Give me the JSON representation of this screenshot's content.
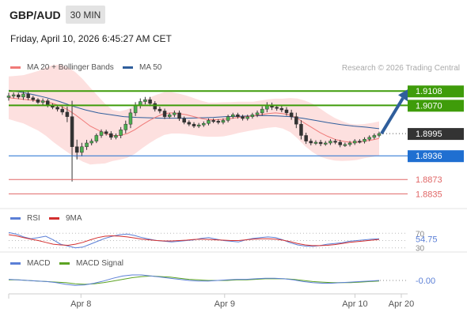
{
  "header": {
    "symbol": "GBP/AUD",
    "timeframe": "30 MIN",
    "timestamp": "Friday, April 10, 2026 6:45:27 AM CET",
    "copyright": "Research © 2026 Trading Central"
  },
  "legends": {
    "main": [
      {
        "label": "MA 20 + Bollinger Bands",
        "color": "#f07a78"
      },
      {
        "label": "MA 50",
        "color": "#2f5e9c"
      }
    ],
    "rsi": [
      {
        "label": "RSI",
        "color": "#5b7fd6"
      },
      {
        "label": "9MA",
        "color": "#d32f2f"
      }
    ],
    "macd": [
      {
        "label": "MACD",
        "color": "#5b7fd6"
      },
      {
        "label": "MACD Signal",
        "color": "#5ca323"
      }
    ]
  },
  "chart_data": {
    "type": "candlestick",
    "price_range": [
      1.88,
      1.914
    ],
    "levels": [
      {
        "value": 1.9108,
        "label": "1.9108",
        "style": "resistance",
        "color": "#3f9c0a"
      },
      {
        "value": 1.907,
        "label": "1.9070",
        "style": "resistance",
        "color": "#3f9c0a"
      },
      {
        "value": 1.8995,
        "label": "1.8995",
        "style": "current",
        "color": "#333333"
      },
      {
        "value": 1.8936,
        "label": "1.8936",
        "style": "pivot",
        "color": "#1f6fd1"
      },
      {
        "value": 1.8873,
        "label": "1.8873",
        "style": "support",
        "color": "#e06666"
      },
      {
        "value": 1.8835,
        "label": "1.8835",
        "style": "support",
        "color": "#e06666"
      }
    ],
    "close": [
      1.9095,
      1.9098,
      1.9092,
      1.91,
      1.909,
      1.9085,
      1.9078,
      1.9082,
      1.907,
      1.9065,
      1.906,
      1.9052,
      1.904,
      1.896,
      1.8945,
      1.896,
      1.897,
      1.8975,
      1.899,
      1.9,
      1.8995,
      1.8985,
      1.899,
      1.9005,
      1.902,
      1.905,
      1.907,
      1.908,
      1.9085,
      1.9075,
      1.906,
      1.9055,
      1.904,
      1.9045,
      1.905,
      1.9035,
      1.9025,
      1.902,
      1.9015,
      1.9018,
      1.9022,
      1.903,
      1.9028,
      1.9025,
      1.903,
      1.904,
      1.9045,
      1.904,
      1.9035,
      1.904,
      1.9045,
      1.905,
      1.906,
      1.907,
      1.9065,
      1.9062,
      1.9058,
      1.905,
      1.904,
      1.902,
      1.899,
      1.8975,
      1.897,
      1.8972,
      1.8968,
      1.897,
      1.8975,
      1.8972,
      1.8965,
      1.8966,
      1.897,
      1.8975,
      1.8974,
      1.898,
      1.8985,
      1.899,
      1.8995
    ],
    "ma20": [
      1.909,
      1.9088,
      1.9086,
      1.9084,
      1.9082,
      1.908,
      1.9075,
      1.9068,
      1.9058,
      1.9045,
      1.903,
      1.9015,
      1.9005,
      1.8995,
      1.899,
      1.899,
      1.8995,
      1.9005,
      1.9018,
      1.903,
      1.904,
      1.9048,
      1.905,
      1.9048,
      1.9045,
      1.904,
      1.9035,
      1.9032,
      1.9032,
      1.9033,
      1.9035,
      1.9038,
      1.904,
      1.9042,
      1.9045,
      1.9048,
      1.905,
      1.9048,
      1.9044,
      1.9035,
      1.9022,
      1.901,
      1.8998,
      1.8988,
      1.898,
      1.8975,
      1.8972,
      1.8972,
      1.8975,
      1.8978,
      1.8982
    ],
    "ma50": [
      1.911,
      1.9105,
      1.9098,
      1.909,
      1.908,
      1.9068,
      1.9058,
      1.905,
      1.9045,
      1.904,
      1.9038,
      1.9037,
      1.9036,
      1.9036,
      1.9036,
      1.9037,
      1.9038,
      1.904,
      1.9041,
      1.9042,
      1.9043,
      1.9042,
      1.904,
      1.9036,
      1.903,
      1.9024,
      1.9019,
      1.9015,
      1.9012,
      1.9008
    ],
    "forecast": {
      "from": 1.8995,
      "to": 1.9108
    },
    "x_ticks": [
      {
        "label": "Apr 8",
        "pos": 0.184
      },
      {
        "label": "Apr 9",
        "pos": 0.55
      },
      {
        "label": "Apr 10",
        "pos": 0.882
      },
      {
        "label": "Apr 20",
        "pos": 1.0
      }
    ],
    "rsi": {
      "levels": [
        70,
        50,
        30
      ],
      "current": "54.75",
      "values": [
        72,
        68,
        60,
        55,
        58,
        62,
        52,
        40,
        35,
        30,
        32,
        40,
        48,
        56,
        62,
        66,
        68,
        64,
        58,
        54,
        50,
        48,
        46,
        48,
        50,
        52,
        56,
        58,
        54,
        50,
        48,
        46,
        52,
        56,
        58,
        60,
        58,
        52,
        44,
        38,
        35,
        34,
        36,
        40,
        42,
        44,
        48,
        50,
        52,
        54,
        55
      ],
      "ma9": [
        66,
        63,
        58,
        54,
        50,
        45,
        40,
        38,
        37,
        40,
        45,
        52,
        58,
        62,
        63,
        62,
        60,
        57,
        54,
        52,
        50,
        49,
        49,
        50,
        51,
        53,
        54,
        53,
        52,
        51,
        50,
        50,
        52,
        54,
        55,
        55,
        54,
        51,
        47,
        42,
        38,
        36,
        36,
        37,
        39,
        42,
        45,
        47,
        49,
        51,
        53
      ]
    },
    "macd": {
      "current": "-0.00",
      "values": [
        0.2,
        0.1,
        0.0,
        -0.1,
        -0.2,
        -0.4,
        -0.7,
        -0.9,
        -0.8,
        -0.5,
        -0.1,
        0.4,
        0.8,
        1.0,
        1.0,
        0.8,
        0.6,
        0.4,
        0.2,
        0.0,
        -0.1,
        -0.1,
        0.0,
        0.1,
        0.2,
        0.2,
        0.3,
        0.4,
        0.4,
        0.3,
        0.1,
        -0.2,
        -0.4,
        -0.5,
        -0.5,
        -0.4,
        -0.3,
        -0.2,
        -0.1,
        0.0
      ],
      "signal": [
        0.1,
        0.1,
        0.0,
        -0.1,
        -0.2,
        -0.3,
        -0.4,
        -0.6,
        -0.7,
        -0.6,
        -0.4,
        -0.1,
        0.2,
        0.5,
        0.7,
        0.8,
        0.7,
        0.6,
        0.4,
        0.2,
        0.1,
        0.0,
        0.0,
        0.0,
        0.1,
        0.1,
        0.2,
        0.3,
        0.3,
        0.3,
        0.2,
        0.0,
        -0.2,
        -0.3,
        -0.4,
        -0.4,
        -0.4,
        -0.3,
        -0.2,
        -0.1
      ]
    }
  }
}
